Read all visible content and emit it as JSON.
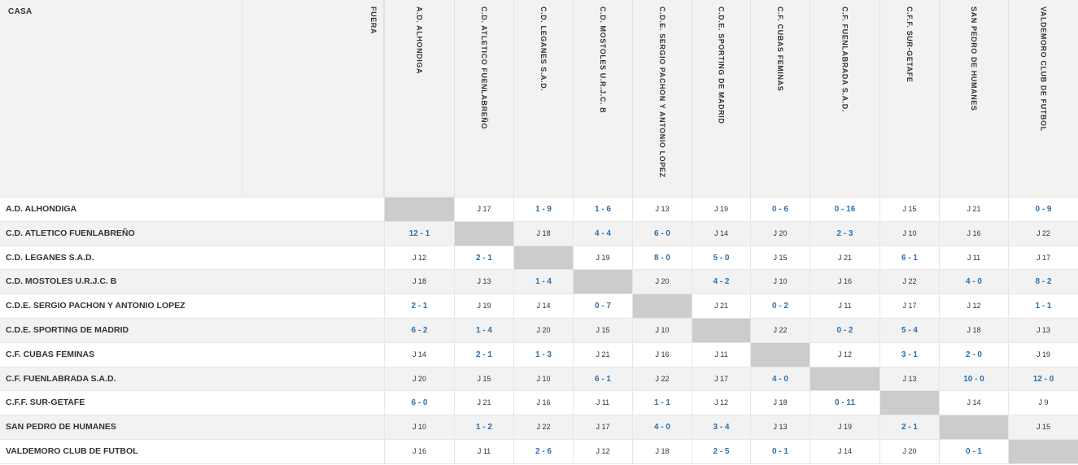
{
  "header": {
    "home_label": "CASA",
    "away_label": "FUERA"
  },
  "teams": [
    "A.D. ALHONDIGA",
    "C.D. ATLETICO FUENLABREÑO",
    "C.D. LEGANES S.A.D.",
    "C.D. MOSTOLES U.R.J.C. B",
    "C.D.E. SERGIO PACHON Y ANTONIO LOPEZ",
    "C.D.E. SPORTING DE MADRID",
    "C.F. CUBAS FEMINAS",
    "C.F. FUENLABRADA S.A.D.",
    "C.F.F. SUR-GETAFE",
    "SAN PEDRO DE HUMANES",
    "VALDEMORO CLUB DE FUTBOL"
  ],
  "matrix": [
    [
      "",
      "J 17",
      "1 - 9",
      "1 - 6",
      "J 13",
      "J 19",
      "0 - 6",
      "0 - 16",
      "J 15",
      "J 21",
      "0 - 9"
    ],
    [
      "12 - 1",
      "",
      "J 18",
      "4 - 4",
      "6 - 0",
      "J 14",
      "J 20",
      "2 - 3",
      "J 10",
      "J 16",
      "J 22"
    ],
    [
      "J 12",
      "2 - 1",
      "",
      "J 19",
      "8 - 0",
      "5 - 0",
      "J 15",
      "J 21",
      "6 - 1",
      "J 11",
      "J 17"
    ],
    [
      "J 18",
      "J 13",
      "1 - 4",
      "",
      "J 20",
      "4 - 2",
      "J 10",
      "J 16",
      "J 22",
      "4 - 0",
      "8 - 2"
    ],
    [
      "2 - 1",
      "J 19",
      "J 14",
      "0 - 7",
      "",
      "J 21",
      "0 - 2",
      "J 11",
      "J 17",
      "J 12",
      "1 - 1"
    ],
    [
      "6 - 2",
      "1 - 4",
      "J 20",
      "J 15",
      "J 10",
      "",
      "J 22",
      "0 - 2",
      "5 - 4",
      "J 18",
      "J 13"
    ],
    [
      "J 14",
      "2 - 1",
      "1 - 3",
      "J 21",
      "J 16",
      "J 11",
      "",
      "J 12",
      "3 - 1",
      "2 - 0",
      "J 19"
    ],
    [
      "J 20",
      "J 15",
      "J 10",
      "6 - 1",
      "J 22",
      "J 17",
      "4 - 0",
      "",
      "J 13",
      "10 - 0",
      "12 - 0"
    ],
    [
      "6 - 0",
      "J 21",
      "J 16",
      "J 11",
      "1 - 1",
      "J 12",
      "J 18",
      "0 - 11",
      "",
      "J 14",
      "J 9"
    ],
    [
      "J 10",
      "1 - 2",
      "J 22",
      "J 17",
      "4 - 0",
      "3 - 4",
      "J 13",
      "J 19",
      "2 - 1",
      "",
      "J 15"
    ],
    [
      "J 16",
      "J 11",
      "2 - 6",
      "J 12",
      "J 18",
      "2 - 5",
      "0 - 1",
      "J 14",
      "J 20",
      "0 - 1",
      ""
    ]
  ],
  "colors": {
    "score": "#2e6fae",
    "self_cell": "#cccccc",
    "header_bg": "#f2f2f2",
    "alt_row": "#f2f2f2"
  }
}
